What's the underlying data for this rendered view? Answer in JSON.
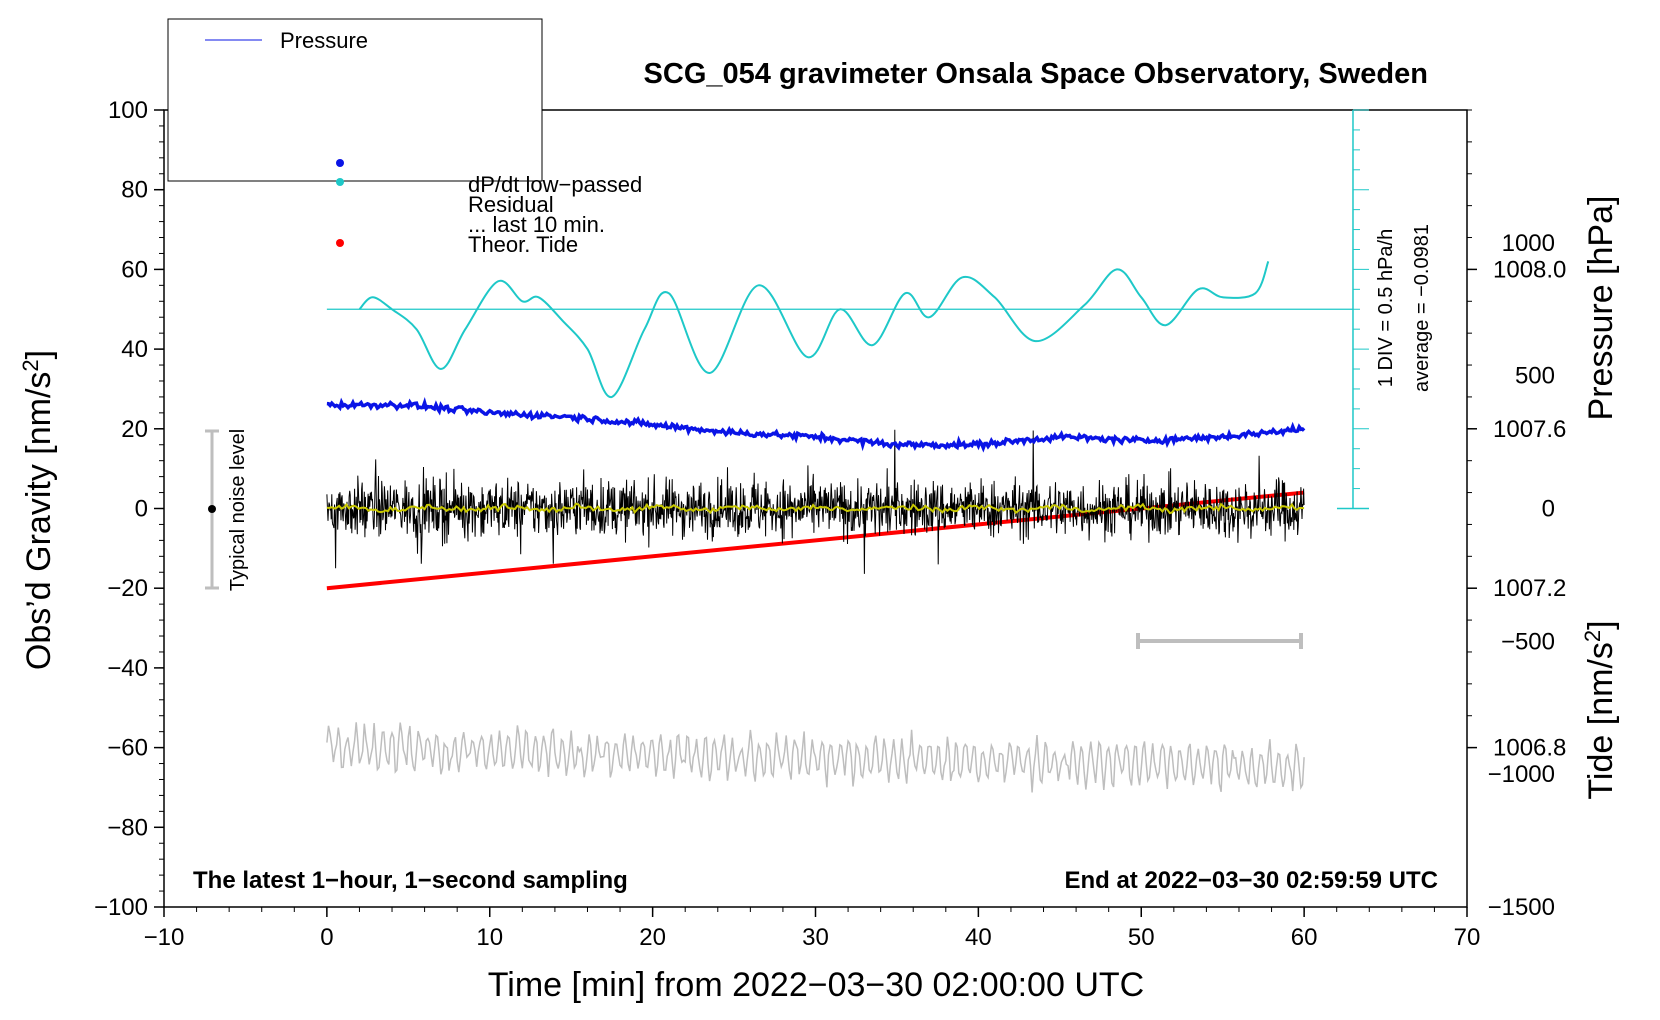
{
  "chart_data": {
    "type": "line",
    "title": "SCG_054 gravimeter Onsala Space Observatory, Sweden",
    "xlabel": "Time [min] from 2022−03−30 02:00:00 UTC",
    "ylabel_left": "Obs’d Gravity [nm/s",
    "ylabel_left_sup": "2",
    "ylabel_left_close": "]",
    "ylabel_pressure": "Pressure [hPa]",
    "ylabel_tide": "Tide [nm/s",
    "ylabel_tide_sup": "2",
    "ylabel_tide_close": "]",
    "xlim": [
      -10,
      70
    ],
    "ylim": [
      -100,
      100
    ],
    "x_ticks": [
      "−10",
      "0",
      "10",
      "20",
      "30",
      "40",
      "50",
      "60",
      "70"
    ],
    "y_ticks": [
      "−100",
      "−80",
      "−60",
      "−40",
      "−20",
      "0",
      "20",
      "40",
      "60",
      "80",
      "100"
    ],
    "pressure_ticks": [
      "1008.0",
      "1007.6",
      "1007.2",
      "1006.8"
    ],
    "pressure_range": [
      1006.4,
      1008.4
    ],
    "tide_ticks": [
      "1000",
      "500",
      "0",
      "−500",
      "−1000",
      "−1500"
    ],
    "tide_range": [
      -1500,
      1500
    ],
    "note_left": "The latest 1−hour, 1−second sampling",
    "note_right": "End at 2022−03−30 02:59:59 UTC",
    "noise_label": "Typical noise level",
    "noise_bar": {
      "x": -7,
      "y_low": -20,
      "y_high": 20
    },
    "dpdt_scale": "1 DIV = 0.5 hPa/h",
    "dpdt_average": "average = −0.0981",
    "legend": {
      "pressure": "Pressure",
      "dpdt": "dP/dt low−passed",
      "residual": "Residual",
      "last10": "... last 10 min.",
      "theor_tide": "Theor. Tide"
    },
    "series": [
      {
        "name": "Pressure",
        "unit": "hPa",
        "x": [
          0,
          5,
          10,
          15,
          20,
          25,
          30,
          35,
          40,
          45,
          50,
          55,
          60
        ],
        "values": [
          1007.66,
          1007.66,
          1007.64,
          1007.63,
          1007.61,
          1007.59,
          1007.58,
          1007.56,
          1007.56,
          1007.58,
          1007.57,
          1007.58,
          1007.6
        ]
      },
      {
        "name": "dP/dt low−passed",
        "unit": "nm/s2 (plot scale)",
        "x": [
          2,
          2.8,
          4,
          5.5,
          7,
          8.5,
          10.5,
          12,
          13,
          14.5,
          16,
          17.5,
          19.5,
          21,
          23.5,
          26.5,
          29.5,
          31.5,
          33.5,
          35.5,
          37,
          39,
          41,
          43.5,
          46.5,
          48.5,
          50,
          51.5,
          53.5,
          55,
          57,
          57.8
        ],
        "values": [
          50,
          53,
          50,
          45,
          35,
          45,
          57,
          52,
          53,
          47,
          40,
          28,
          45,
          54,
          34,
          56,
          38,
          50,
          41,
          54,
          48,
          58,
          53,
          42,
          51,
          60,
          53,
          46,
          55,
          53,
          54,
          62
        ]
      },
      {
        "name": "Residual",
        "unit": "nm/s2",
        "x": [
          0,
          60
        ],
        "values": [
          0,
          0
        ]
      },
      {
        "name": "... last 10 min.",
        "unit": "nm/s2",
        "x": [
          0,
          60
        ],
        "values": [
          0,
          0
        ]
      },
      {
        "name": "Theor. Tide",
        "unit": "nm/s2",
        "x": [
          0,
          60
        ],
        "values": [
          -300,
          60
        ]
      },
      {
        "name": "Tide detail",
        "unit": "plot scale",
        "x": [
          0,
          60
        ],
        "values": [
          -60,
          -65
        ]
      }
    ],
    "grey_scale_bar": {
      "x_start": 50,
      "x_end": 60,
      "tide": 500
    },
    "dpdt_reference": 50,
    "dpdt_axis": {
      "x": 63,
      "y_low": 0,
      "y_high": 100
    }
  },
  "colors": {
    "pressure": "#0a14e6",
    "dpdt": "#1ec8c8",
    "residual": "#000000",
    "last10": "#c8c800",
    "theor_tide": "#ff0000",
    "tide_detail": "#bebebe",
    "noise": "#bebebe"
  }
}
